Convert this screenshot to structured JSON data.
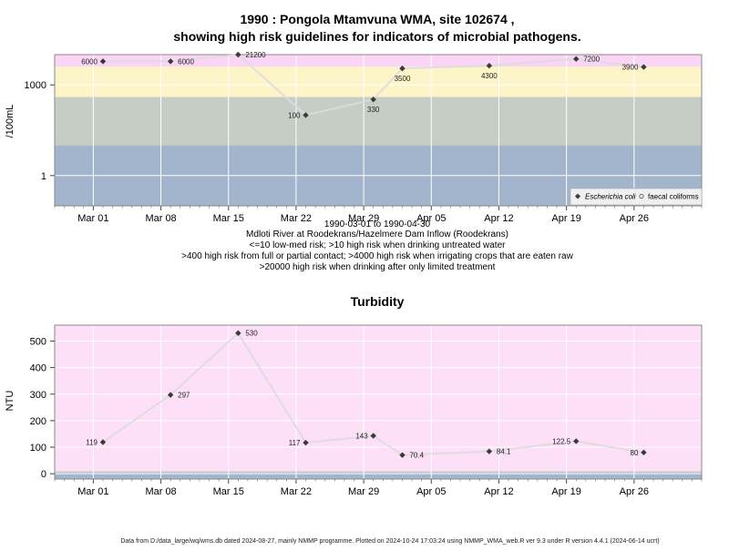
{
  "page": {
    "title_line1": "1990 : Pongola Mtamvuna WMA, site 102674 ,",
    "title_line2": "showing high risk guidelines for indicators of microbial pathogens.",
    "caption": [
      "1990-03-01 to 1990-04-30",
      "Mdloti River at Roodekrans/Hazelmere Dam Inflow (Roodekrans)",
      "<=10 low-med risk; >10 high risk when drinking untreated water",
      ">400 high risk from full or partial contact; >4000 high risk when irrigating crops that are eaten raw",
      ">20000 high risk when drinking after only limited treatment"
    ],
    "footer": "Data from D:/data_large/wq/wms.db dated 2024-08-27, mainly NMMP programme. Plotted on 2024-10-24 17:03:24 using NMMP_WMA_web.R ver 9.3 under R version 4.4.1 (2024-06-14 ucrt)"
  },
  "chart_data": [
    {
      "type": "line",
      "title": "",
      "ylabel": "/100mL",
      "yscale": "log",
      "ylim": [
        0.1,
        10000
      ],
      "yticks": [
        1,
        1000
      ],
      "ytick_labels": [
        "1",
        "1000"
      ],
      "xlim": [
        "1990-02-25",
        "1990-05-03"
      ],
      "xticks": [
        "1990-03-01",
        "1990-03-08",
        "1990-03-15",
        "1990-03-22",
        "1990-03-29",
        "1990-04-05",
        "1990-04-12",
        "1990-04-19",
        "1990-04-26"
      ],
      "xtick_labels": [
        "Mar 01",
        "Mar 08",
        "Mar 15",
        "Mar 22",
        "Mar 29",
        "Apr 05",
        "Apr 12",
        "Apr 19",
        "Apr 26"
      ],
      "grid": true,
      "bands": [
        {
          "from": 0.1,
          "to": 10,
          "color": "#a2b5cd"
        },
        {
          "from": 10,
          "to": 400,
          "color": "#c5cdc5"
        },
        {
          "from": 400,
          "to": 4000,
          "color": "#fdf5c8"
        },
        {
          "from": 4000,
          "to": 20000,
          "color": "#fbd5f5"
        },
        {
          "from": 20000,
          "to": 10000,
          "color": "#f5a8c8"
        }
      ],
      "series": [
        {
          "name": "Escherichia coli",
          "marker": "filled-diamond",
          "color": "#3a3a3a",
          "x": [
            "1990-03-02",
            "1990-03-09",
            "1990-03-16",
            "1990-03-23",
            "1990-03-30",
            "1990-04-02",
            "1990-04-11",
            "1990-04-20",
            "1990-04-27"
          ],
          "values": [
            6000,
            6000,
            21200,
            100,
            330,
            3500,
            4300,
            7200,
            3900
          ],
          "labels": [
            "6000",
            "6000",
            "21200",
            "100",
            "330",
            "3500",
            "4300",
            "7200",
            "3900"
          ]
        },
        {
          "name": "faecal coliforms",
          "marker": "open-circle",
          "color": "#555555",
          "x": [],
          "values": []
        }
      ],
      "legend": {
        "position": "bottom-right"
      }
    },
    {
      "type": "line",
      "title": "Turbidity",
      "ylabel": "NTU",
      "ylim": [
        -20,
        560
      ],
      "yticks": [
        0,
        100,
        200,
        300,
        400,
        500
      ],
      "ytick_labels": [
        "0",
        "100",
        "200",
        "300",
        "400",
        "500"
      ],
      "xlim": [
        "1990-02-25",
        "1990-05-03"
      ],
      "xticks": [
        "1990-03-01",
        "1990-03-08",
        "1990-03-15",
        "1990-03-22",
        "1990-03-29",
        "1990-04-05",
        "1990-04-12",
        "1990-04-19",
        "1990-04-26"
      ],
      "xtick_labels": [
        "Mar 01",
        "Mar 08",
        "Mar 15",
        "Mar 22",
        "Mar 29",
        "Apr 05",
        "Apr 12",
        "Apr 19",
        "Apr 26"
      ],
      "grid": true,
      "bands": [
        {
          "from": -20,
          "to": 5,
          "color": "#a2b5cd"
        },
        {
          "from": 5,
          "to": 10,
          "color": "#c5cdc5"
        },
        {
          "from": 10,
          "to": 560,
          "color": "#fddff8"
        }
      ],
      "series": [
        {
          "name": "Turbidity",
          "marker": "filled-diamond",
          "color": "#3a3a3a",
          "x": [
            "1990-03-02",
            "1990-03-09",
            "1990-03-16",
            "1990-03-23",
            "1990-03-30",
            "1990-04-02",
            "1990-04-11",
            "1990-04-20",
            "1990-04-27"
          ],
          "values": [
            119,
            297,
            530,
            117,
            143,
            70.4,
            84.1,
            122.5,
            80
          ],
          "labels": [
            "119",
            "297",
            "530",
            "117",
            "143",
            "70.4",
            "84.1",
            "122.5",
            "80"
          ]
        }
      ]
    }
  ]
}
